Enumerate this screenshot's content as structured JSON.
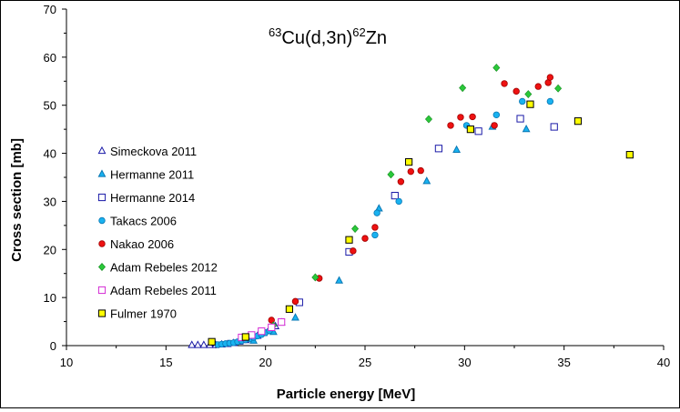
{
  "chart_data": {
    "type": "scatter",
    "title": {
      "mass_a": "63",
      "elem_a": "Cu(d,3n)",
      "mass_b": "62",
      "elem_b": "Zn"
    },
    "xlabel": "Particle energy [MeV]",
    "ylabel": "Cross section [mb]",
    "xlim": [
      10,
      40
    ],
    "ylim": [
      0,
      70
    ],
    "x_ticks": [
      "10",
      "15",
      "20",
      "25",
      "30",
      "35",
      "40"
    ],
    "y_ticks": [
      "0",
      "10",
      "20",
      "30",
      "40",
      "50",
      "60",
      "70"
    ],
    "grid": false,
    "legend_position": "left",
    "series": [
      {
        "name": "Simeckova 2011",
        "marker": "triangle-open",
        "color": "#1a1aa8",
        "points": [
          [
            16.3,
            0.1
          ],
          [
            16.6,
            0.1
          ],
          [
            16.9,
            0.1
          ],
          [
            17.2,
            0.1
          ],
          [
            17.5,
            0.1
          ],
          [
            17.8,
            0.2
          ],
          [
            18.1,
            0.3
          ],
          [
            18.4,
            0.5
          ],
          [
            18.7,
            0.8
          ],
          [
            19.0,
            1.1
          ],
          [
            19.3,
            1.5
          ],
          [
            19.6,
            2.0
          ],
          [
            19.9,
            2.6
          ],
          [
            20.2,
            3.3
          ],
          [
            20.5,
            4.0
          ],
          [
            20.8,
            4.8
          ]
        ]
      },
      {
        "name": "Hermanne 2011",
        "marker": "triangle-filled",
        "color": "#19b2f0",
        "points": [
          [
            19.4,
            1.0
          ],
          [
            20.4,
            2.8
          ],
          [
            21.5,
            5.8
          ],
          [
            23.7,
            13.5
          ],
          [
            25.7,
            28.5
          ],
          [
            28.1,
            34.2
          ],
          [
            29.6,
            40.7
          ],
          [
            31.4,
            45.5
          ],
          [
            33.1,
            45.0
          ]
        ]
      },
      {
        "name": "Hermanne 2014",
        "marker": "square-open",
        "color": "#1a1aa8",
        "points": [
          [
            21.7,
            9.0
          ],
          [
            24.2,
            19.5
          ],
          [
            26.5,
            31.2
          ],
          [
            28.7,
            41.0
          ],
          [
            30.7,
            44.6
          ],
          [
            32.8,
            47.2
          ],
          [
            34.5,
            45.5
          ]
        ]
      },
      {
        "name": "Takacs 2006",
        "marker": "circle",
        "color": "#19b2f0",
        "points": [
          [
            17.6,
            0.2
          ],
          [
            17.8,
            0.3
          ],
          [
            18.0,
            0.4
          ],
          [
            18.2,
            0.5
          ],
          [
            18.4,
            0.6
          ],
          [
            18.6,
            0.8
          ],
          [
            18.8,
            1.0
          ],
          [
            19.0,
            1.2
          ],
          [
            19.2,
            1.4
          ],
          [
            19.4,
            1.7
          ],
          [
            19.6,
            2.0
          ],
          [
            19.8,
            2.3
          ],
          [
            20.0,
            2.7
          ],
          [
            20.2,
            3.1
          ],
          [
            25.5,
            23.0
          ],
          [
            25.6,
            27.6
          ],
          [
            26.7,
            30.0
          ],
          [
            30.1,
            45.8
          ],
          [
            31.6,
            48.0
          ],
          [
            32.9,
            50.8
          ],
          [
            34.3,
            50.8
          ]
        ]
      },
      {
        "name": "Nakao 2006",
        "marker": "circle",
        "color": "#ee1111",
        "points": [
          [
            20.3,
            5.3
          ],
          [
            21.5,
            9.2
          ],
          [
            22.7,
            14.0
          ],
          [
            24.4,
            19.7
          ],
          [
            25.0,
            22.3
          ],
          [
            25.5,
            24.6
          ],
          [
            26.8,
            34.1
          ],
          [
            27.3,
            36.2
          ],
          [
            27.8,
            36.4
          ],
          [
            29.3,
            45.8
          ],
          [
            29.8,
            47.5
          ],
          [
            30.4,
            47.6
          ],
          [
            31.5,
            45.8
          ],
          [
            32.0,
            54.5
          ],
          [
            32.6,
            52.9
          ],
          [
            33.7,
            53.9
          ],
          [
            34.2,
            54.7
          ],
          [
            34.3,
            55.8
          ]
        ]
      },
      {
        "name": "Adam Rebeles 2012",
        "marker": "diamond",
        "color": "#2ac83a",
        "points": [
          [
            20.4,
            4.2
          ],
          [
            22.5,
            14.2
          ],
          [
            24.5,
            24.3
          ],
          [
            26.3,
            35.6
          ],
          [
            28.2,
            47.1
          ],
          [
            29.9,
            53.6
          ],
          [
            31.6,
            57.8
          ],
          [
            33.2,
            52.3
          ],
          [
            34.7,
            53.5
          ]
        ]
      },
      {
        "name": "Adam Rebeles 2011",
        "marker": "square-open",
        "color": "#d42ad4",
        "points": [
          [
            18.8,
            1.7
          ],
          [
            19.3,
            2.2
          ],
          [
            19.8,
            3.0
          ],
          [
            20.3,
            3.8
          ],
          [
            20.8,
            4.9
          ]
        ]
      },
      {
        "name": "Fulmer 1970",
        "marker": "square-filled",
        "color": "#ffff00",
        "points": [
          [
            17.3,
            0.8
          ],
          [
            19.0,
            1.8
          ],
          [
            21.2,
            7.6
          ],
          [
            24.2,
            22.0
          ],
          [
            27.2,
            38.2
          ],
          [
            30.3,
            45.0
          ],
          [
            33.3,
            50.2
          ],
          [
            35.7,
            46.7
          ],
          [
            38.3,
            39.7
          ]
        ]
      }
    ]
  }
}
